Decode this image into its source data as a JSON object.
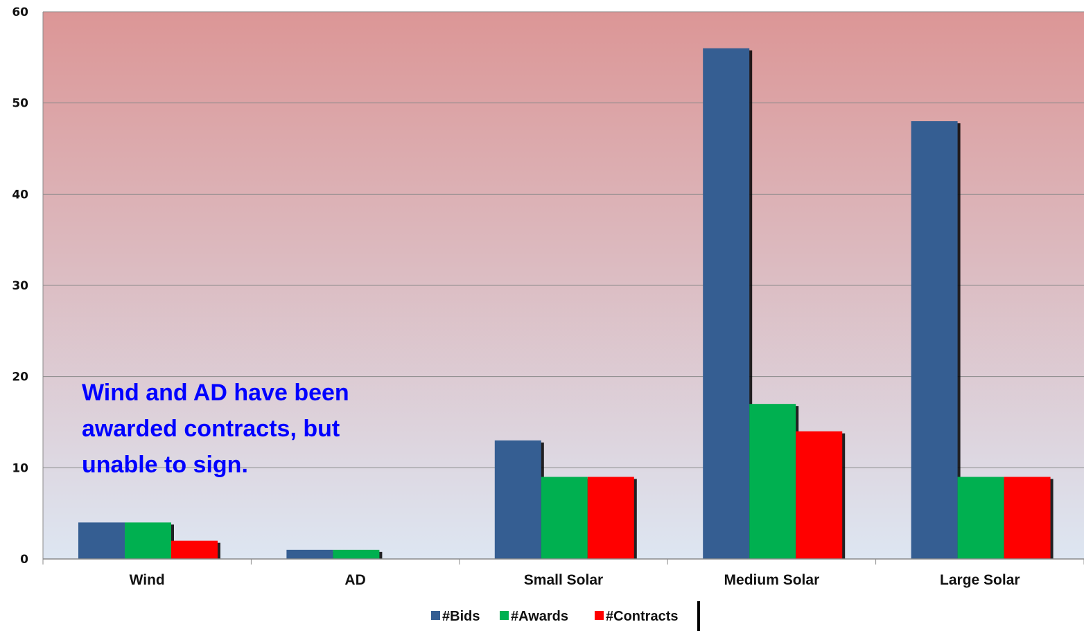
{
  "chart_data": {
    "type": "bar",
    "categories": [
      "Wind",
      "AD",
      "Small Solar",
      "Medium Solar",
      "Large Solar"
    ],
    "series": [
      {
        "name": "#Bids",
        "values": [
          4,
          1,
          13,
          56,
          48
        ],
        "color": "#355E92"
      },
      {
        "name": "#Awards",
        "values": [
          4,
          1,
          9,
          17,
          9
        ],
        "color": "#00B050"
      },
      {
        "name": "#Contracts",
        "values": [
          2,
          0,
          9,
          14,
          9
        ],
        "color": "#FF0000"
      }
    ],
    "title": "",
    "xlabel": "",
    "ylabel": "",
    "ylim": [
      0,
      60
    ],
    "yticks": [
      0,
      10,
      20,
      30,
      40,
      50,
      60
    ],
    "grid": true,
    "legend_position": "bottom",
    "background": {
      "top_color": "#DC9696",
      "bottom_color": "#DDE6F2"
    },
    "annotation": {
      "text": "Wind and AD have been awarded contracts, but unable to sign.",
      "color": "#0000FF"
    }
  }
}
